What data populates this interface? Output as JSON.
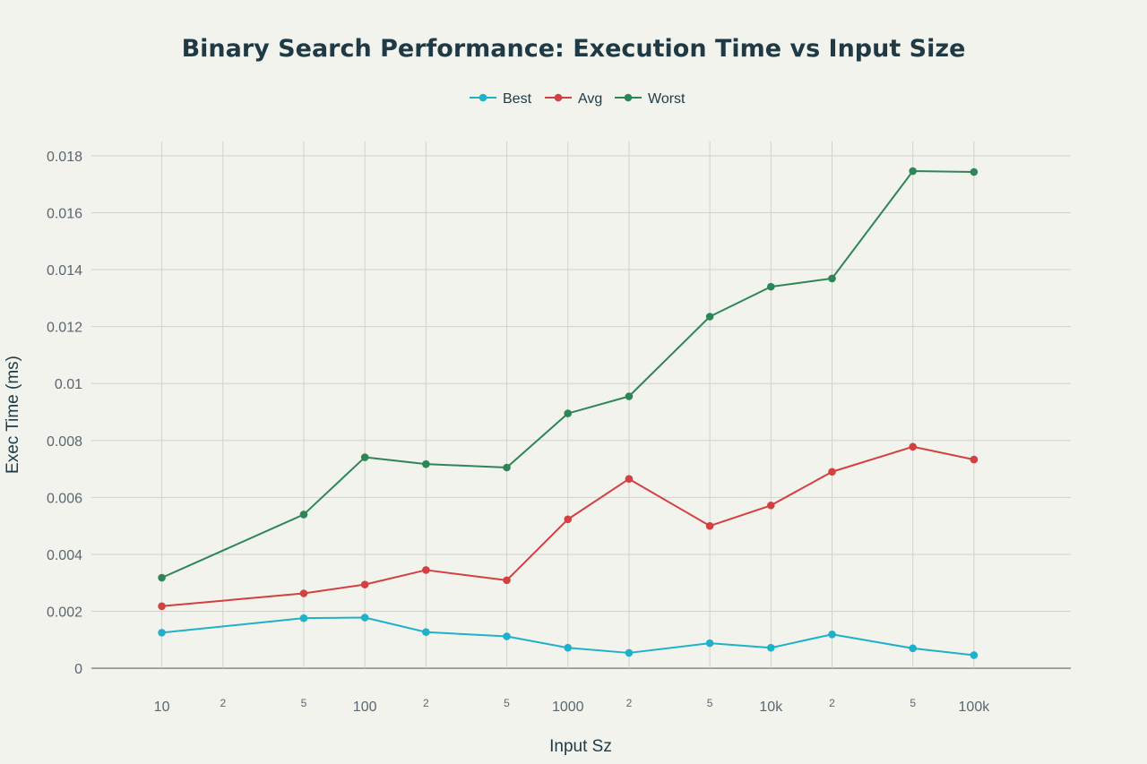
{
  "chart_data": {
    "type": "line",
    "title": "Binary Search Performance: Execution Time vs Input Size",
    "xlabel": "Input Sz",
    "ylabel": "Exec Time (ms)",
    "x_scale": "log",
    "x_range": [
      4.5,
      300000
    ],
    "ylim": [
      -0.0005,
      0.0185
    ],
    "grid": true,
    "legend_position": "top-center",
    "y_ticks": [
      {
        "value": 0,
        "label": "0"
      },
      {
        "value": 0.002,
        "label": "0.002"
      },
      {
        "value": 0.004,
        "label": "0.004"
      },
      {
        "value": 0.006,
        "label": "0.006"
      },
      {
        "value": 0.008,
        "label": "0.008"
      },
      {
        "value": 0.01,
        "label": "0.01"
      },
      {
        "value": 0.012,
        "label": "0.012"
      },
      {
        "value": 0.014,
        "label": "0.014"
      },
      {
        "value": 0.016,
        "label": "0.016"
      },
      {
        "value": 0.018,
        "label": "0.018"
      }
    ],
    "x_ticks": [
      {
        "value": 10,
        "label": "10",
        "major": true
      },
      {
        "value": 20,
        "label": "2",
        "major": false
      },
      {
        "value": 50,
        "label": "5",
        "major": false
      },
      {
        "value": 100,
        "label": "100",
        "major": true
      },
      {
        "value": 200,
        "label": "2",
        "major": false
      },
      {
        "value": 500,
        "label": "5",
        "major": false
      },
      {
        "value": 1000,
        "label": "1000",
        "major": true
      },
      {
        "value": 2000,
        "label": "2",
        "major": false
      },
      {
        "value": 5000,
        "label": "5",
        "major": false
      },
      {
        "value": 10000,
        "label": "10k",
        "major": true
      },
      {
        "value": 20000,
        "label": "2",
        "major": false
      },
      {
        "value": 50000,
        "label": "5",
        "major": false
      },
      {
        "value": 100000,
        "label": "100k",
        "major": true
      }
    ],
    "x": [
      10,
      50,
      100,
      200,
      500,
      1000,
      2000,
      5000,
      10000,
      20000,
      50000,
      100000
    ],
    "series": [
      {
        "name": "Best",
        "color": "#1fb1c9",
        "values": [
          0.00125,
          0.00176,
          0.00178,
          0.00127,
          0.00112,
          0.00072,
          0.00054,
          0.00088,
          0.00072,
          0.00119,
          0.0007,
          0.00046
        ]
      },
      {
        "name": "Avg",
        "color": "#d2403f",
        "values": [
          0.00218,
          0.00263,
          0.00294,
          0.00345,
          0.00309,
          0.00523,
          0.00665,
          0.005,
          0.00572,
          0.0069,
          0.00778,
          0.00733
        ]
      },
      {
        "name": "Worst",
        "color": "#2e8556",
        "values": [
          0.00318,
          0.0054,
          0.00741,
          0.00717,
          0.00705,
          0.00895,
          0.00955,
          0.01235,
          0.0134,
          0.01369,
          0.01746,
          0.01743
        ]
      }
    ]
  }
}
